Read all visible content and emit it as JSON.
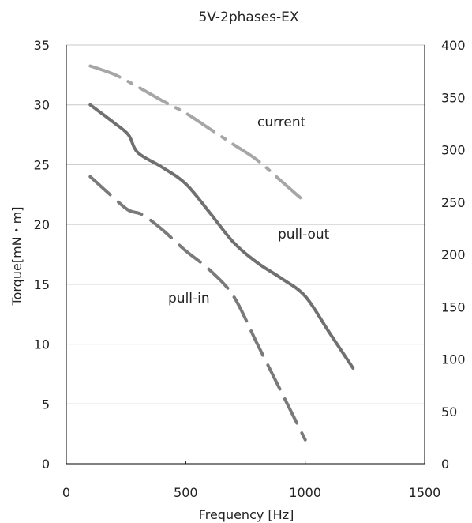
{
  "chart_data": {
    "type": "line",
    "title": "5V-2phases-EX",
    "xlabel": "Frequency [Hz]",
    "ylabel": "Torque[mN・m]",
    "y2label": "",
    "xlim": [
      0,
      1500
    ],
    "ylim": [
      0,
      35
    ],
    "y2lim": [
      0,
      400
    ],
    "xticks": [
      "0",
      "500",
      "1000",
      "1500"
    ],
    "yticks": [
      "0",
      "5",
      "10",
      "15",
      "20",
      "25",
      "30",
      "35"
    ],
    "y2ticks": [
      "0",
      "50",
      "100",
      "150",
      "200",
      "250",
      "300",
      "350",
      "400"
    ],
    "grid": "horizontal",
    "colors": {
      "pull_out": "#707070",
      "pull_in": "#7a7a7a",
      "current": "#a6a6a6",
      "grid": "#c8c8c8",
      "axis": "#000000"
    },
    "series": [
      {
        "name": "current",
        "axis": "right",
        "style": "dash-dot",
        "x": [
          100,
          200,
          300,
          400,
          500,
          600,
          700,
          800,
          900,
          1000
        ],
        "y": [
          380,
          372,
          360,
          347,
          335,
          320,
          305,
          290,
          270,
          250
        ]
      },
      {
        "name": "pull-out",
        "axis": "left",
        "style": "solid",
        "x": [
          100,
          200,
          260,
          300,
          400,
          500,
          600,
          700,
          800,
          900,
          1000,
          1100,
          1200
        ],
        "y": [
          30,
          28.5,
          27.5,
          26,
          24.8,
          23.4,
          21,
          18.5,
          16.8,
          15.5,
          14,
          11,
          8
        ]
      },
      {
        "name": "pull-in",
        "axis": "left",
        "style": "dashed",
        "x": [
          100,
          200,
          260,
          320,
          400,
          500,
          600,
          700,
          800,
          900,
          1000
        ],
        "y": [
          24,
          22.2,
          21.2,
          20.8,
          19.6,
          17.8,
          16.2,
          14,
          10,
          6,
          2
        ]
      }
    ],
    "annotations": [
      {
        "text": "current",
        "series": "current"
      },
      {
        "text": "pull-out",
        "series": "pull-out"
      },
      {
        "text": "pull-in",
        "series": "pull-in"
      }
    ]
  }
}
